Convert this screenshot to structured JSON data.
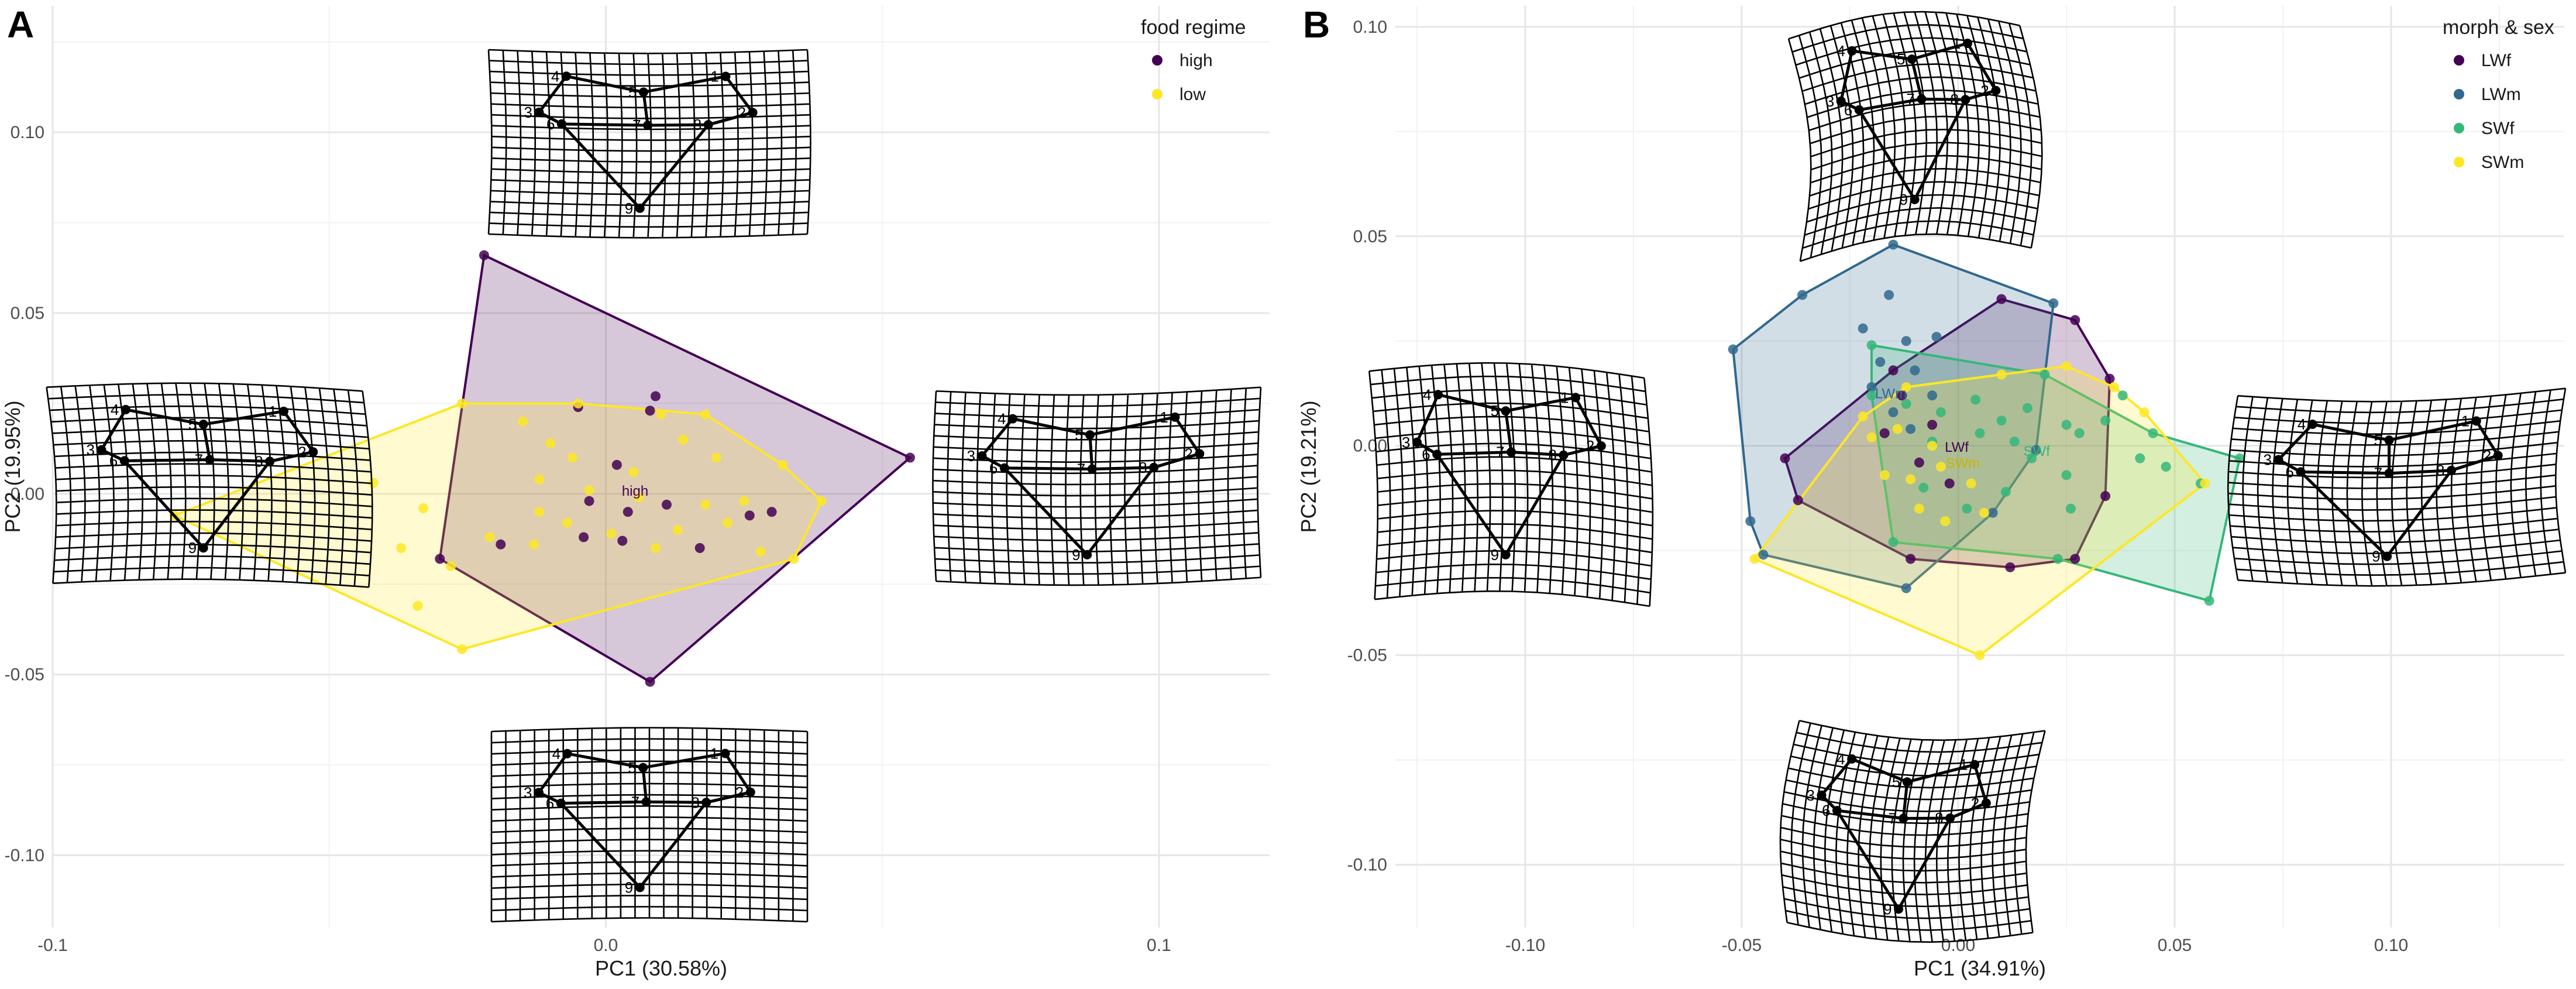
{
  "chart_data": [
    {
      "panel": "A",
      "type": "scatter",
      "xlabel": "PC1 (30.58%)",
      "ylabel": "PC2 (19.95%)",
      "xlim": [
        -0.1,
        0.12
      ],
      "ylim": [
        -0.12,
        0.135
      ],
      "x_ticks": [
        -0.1,
        0.0,
        0.1
      ],
      "x_tick_labels": [
        "-0.1",
        "0.0",
        "0.1"
      ],
      "y_ticks": [
        -0.1,
        -0.05,
        0.0,
        0.05,
        0.1
      ],
      "y_tick_labels": [
        "-0.10",
        "-0.05",
        "0.00",
        "0.05",
        "0.10"
      ],
      "grid": true,
      "legend": {
        "title": "food regime",
        "position": "top-right"
      },
      "group_label_text": [
        "high"
      ],
      "series": [
        {
          "name": "high",
          "color": "#440154",
          "hull": [
            [
              -0.022,
              0.066
            ],
            [
              0.055,
              0.01
            ],
            [
              0.008,
              -0.052
            ],
            [
              -0.03,
              -0.018
            ]
          ],
          "points": [
            [
              -0.022,
              0.066
            ],
            [
              0.055,
              0.01
            ],
            [
              0.008,
              -0.052
            ],
            [
              -0.03,
              -0.018
            ],
            [
              0.009,
              0.027
            ],
            [
              0.008,
              0.023
            ],
            [
              -0.005,
              0.024
            ],
            [
              0.002,
              0.008
            ],
            [
              -0.003,
              -0.002
            ],
            [
              0.004,
              -0.005
            ],
            [
              0.011,
              -0.003
            ],
            [
              0.026,
              -0.006
            ],
            [
              0.03,
              -0.005
            ],
            [
              -0.004,
              -0.012
            ],
            [
              -0.019,
              -0.014
            ],
            [
              0.003,
              -0.013
            ],
            [
              0.017,
              -0.015
            ]
          ]
        },
        {
          "name": "low",
          "color": "#fde725",
          "hull": [
            [
              -0.078,
              -0.006
            ],
            [
              -0.026,
              0.025
            ],
            [
              -0.005,
              0.025
            ],
            [
              0.018,
              0.022
            ],
            [
              0.032,
              0.008
            ],
            [
              0.039,
              -0.002
            ],
            [
              0.034,
              -0.018
            ],
            [
              -0.026,
              -0.043
            ]
          ],
          "points": [
            [
              -0.078,
              -0.006
            ],
            [
              -0.026,
              0.025
            ],
            [
              -0.005,
              0.025
            ],
            [
              0.018,
              0.022
            ],
            [
              0.032,
              0.008
            ],
            [
              0.039,
              -0.002
            ],
            [
              0.034,
              -0.018
            ],
            [
              -0.026,
              -0.043
            ],
            [
              -0.042,
              0.003
            ],
            [
              -0.033,
              -0.004
            ],
            [
              -0.037,
              -0.015
            ],
            [
              -0.034,
              -0.031
            ],
            [
              -0.015,
              0.02
            ],
            [
              -0.01,
              0.014
            ],
            [
              -0.006,
              0.01
            ],
            [
              0.01,
              0.022
            ],
            [
              0.014,
              0.015
            ],
            [
              0.02,
              0.01
            ],
            [
              0.005,
              0.006
            ],
            [
              -0.012,
              0.004
            ],
            [
              -0.003,
              0.001
            ],
            [
              0.006,
              -0.001
            ],
            [
              0.018,
              -0.003
            ],
            [
              0.025,
              -0.002
            ],
            [
              -0.012,
              -0.005
            ],
            [
              -0.007,
              -0.008
            ],
            [
              0.001,
              -0.011
            ],
            [
              0.013,
              -0.01
            ],
            [
              0.022,
              -0.008
            ],
            [
              -0.021,
              -0.012
            ],
            [
              -0.013,
              -0.014
            ],
            [
              0.009,
              -0.015
            ],
            [
              0.028,
              -0.016
            ],
            [
              -0.028,
              -0.02
            ]
          ]
        }
      ]
    },
    {
      "panel": "B",
      "type": "scatter",
      "xlabel": "PC1 (34.91%)",
      "ylabel": "PC2 (19.21%)",
      "xlim": [
        -0.13,
        0.14
      ],
      "ylim": [
        -0.115,
        0.105
      ],
      "x_ticks": [
        -0.1,
        -0.05,
        0.0,
        0.05,
        0.1
      ],
      "x_tick_labels": [
        "-0.10",
        "-0.05",
        "0.00",
        "0.05",
        "0.10"
      ],
      "y_ticks": [
        -0.1,
        -0.05,
        0.0,
        0.05,
        0.1
      ],
      "y_tick_labels": [
        "-0.10",
        "-0.05",
        "0.00",
        "0.05",
        "0.10"
      ],
      "grid": true,
      "legend": {
        "title": "morph & sex",
        "position": "top-right"
      },
      "group_label_text": [
        "LWf",
        "LWm",
        "SWf",
        "SWm"
      ],
      "series": [
        {
          "name": "LWf",
          "color": "#440154",
          "hull": [
            [
              -0.04,
              -0.003
            ],
            [
              -0.015,
              0.018
            ],
            [
              0.01,
              0.035
            ],
            [
              0.027,
              0.03
            ],
            [
              0.035,
              0.016
            ],
            [
              0.034,
              -0.012
            ],
            [
              0.027,
              -0.027
            ],
            [
              0.012,
              -0.029
            ],
            [
              -0.011,
              -0.027
            ],
            [
              -0.037,
              -0.013
            ]
          ],
          "points": [
            [
              -0.04,
              -0.003
            ],
            [
              -0.015,
              0.018
            ],
            [
              0.01,
              0.035
            ],
            [
              0.027,
              0.03
            ],
            [
              0.035,
              0.016
            ],
            [
              0.034,
              -0.012
            ],
            [
              0.027,
              -0.027
            ],
            [
              0.012,
              -0.029
            ],
            [
              -0.011,
              -0.027
            ],
            [
              -0.037,
              -0.013
            ],
            [
              -0.013,
              0.012
            ],
            [
              -0.006,
              0.005
            ],
            [
              -0.017,
              0.003
            ],
            [
              -0.009,
              -0.004
            ],
            [
              -0.002,
              -0.009
            ]
          ]
        },
        {
          "name": "LWm",
          "color": "#31688e",
          "hull": [
            [
              -0.052,
              0.023
            ],
            [
              -0.036,
              0.036
            ],
            [
              -0.015,
              0.048
            ],
            [
              0.022,
              0.034
            ],
            [
              0.018,
              -0.001
            ],
            [
              0.008,
              -0.016
            ],
            [
              -0.012,
              -0.034
            ],
            [
              -0.045,
              -0.026
            ],
            [
              -0.048,
              -0.018
            ]
          ],
          "points": [
            [
              -0.052,
              0.023
            ],
            [
              -0.036,
              0.036
            ],
            [
              -0.015,
              0.048
            ],
            [
              0.022,
              0.034
            ],
            [
              0.018,
              -0.001
            ],
            [
              0.008,
              -0.016
            ],
            [
              -0.012,
              -0.034
            ],
            [
              -0.045,
              -0.026
            ],
            [
              -0.048,
              -0.018
            ],
            [
              -0.016,
              0.036
            ],
            [
              -0.022,
              0.028
            ],
            [
              -0.012,
              0.025
            ],
            [
              -0.005,
              0.026
            ],
            [
              -0.018,
              0.02
            ],
            [
              -0.01,
              0.018
            ],
            [
              -0.02,
              0.014
            ],
            [
              -0.015,
              0.008
            ],
            [
              -0.006,
              0.012
            ],
            [
              -0.011,
              0.004
            ]
          ]
        },
        {
          "name": "SWf",
          "color": "#35b779",
          "hull": [
            [
              -0.02,
              0.012
            ],
            [
              -0.02,
              0.024
            ],
            [
              0.02,
              0.017
            ],
            [
              0.045,
              0.003
            ],
            [
              0.065,
              -0.003
            ],
            [
              0.058,
              -0.037
            ],
            [
              0.023,
              -0.027
            ],
            [
              -0.015,
              -0.023
            ]
          ],
          "points": [
            [
              -0.02,
              0.012
            ],
            [
              -0.02,
              0.024
            ],
            [
              0.02,
              0.017
            ],
            [
              0.045,
              0.003
            ],
            [
              0.065,
              -0.003
            ],
            [
              0.058,
              -0.037
            ],
            [
              0.023,
              -0.027
            ],
            [
              -0.015,
              -0.023
            ],
            [
              -0.012,
              0.01
            ],
            [
              -0.004,
              0.008
            ],
            [
              0.004,
              0.011
            ],
            [
              0.01,
              0.006
            ],
            [
              0.016,
              0.009
            ],
            [
              0.025,
              0.005
            ],
            [
              0.034,
              0.006
            ],
            [
              0.038,
              0.012
            ],
            [
              0.028,
              0.003
            ],
            [
              0.013,
              0.001
            ],
            [
              0.005,
              0.003
            ],
            [
              -0.006,
              0.001
            ],
            [
              0.017,
              -0.003
            ],
            [
              0.025,
              -0.007
            ],
            [
              0.042,
              -0.003
            ],
            [
              0.048,
              -0.005
            ],
            [
              0.056,
              -0.009
            ],
            [
              0.011,
              -0.011
            ],
            [
              0.002,
              -0.015
            ],
            [
              -0.008,
              -0.01
            ],
            [
              0.026,
              -0.015
            ]
          ]
        },
        {
          "name": "SWm",
          "color": "#fde725",
          "hull": [
            [
              -0.047,
              -0.027
            ],
            [
              -0.022,
              0.007
            ],
            [
              -0.012,
              0.014
            ],
            [
              0.01,
              0.017
            ],
            [
              0.025,
              0.019
            ],
            [
              0.036,
              0.014
            ],
            [
              0.043,
              0.008
            ],
            [
              0.057,
              -0.009
            ],
            [
              0.005,
              -0.05
            ]
          ],
          "points": [
            [
              -0.047,
              -0.027
            ],
            [
              -0.022,
              0.007
            ],
            [
              -0.012,
              0.014
            ],
            [
              0.01,
              0.017
            ],
            [
              0.025,
              0.019
            ],
            [
              0.036,
              0.014
            ],
            [
              0.043,
              0.008
            ],
            [
              0.057,
              -0.009
            ],
            [
              0.005,
              -0.05
            ],
            [
              -0.02,
              0.002
            ],
            [
              -0.014,
              0.004
            ],
            [
              -0.006,
              0.0
            ],
            [
              -0.017,
              -0.007
            ],
            [
              -0.011,
              -0.008
            ],
            [
              -0.004,
              -0.005
            ],
            [
              0.003,
              -0.009
            ],
            [
              -0.009,
              -0.015
            ],
            [
              0.006,
              -0.016
            ],
            [
              -0.003,
              -0.018
            ]
          ]
        }
      ]
    }
  ],
  "panel_letters": {
    "a": "A",
    "b": "B"
  },
  "landmark_labels": [
    "1",
    "2",
    "3",
    "4",
    "5",
    "6",
    "7",
    "8",
    "9"
  ]
}
